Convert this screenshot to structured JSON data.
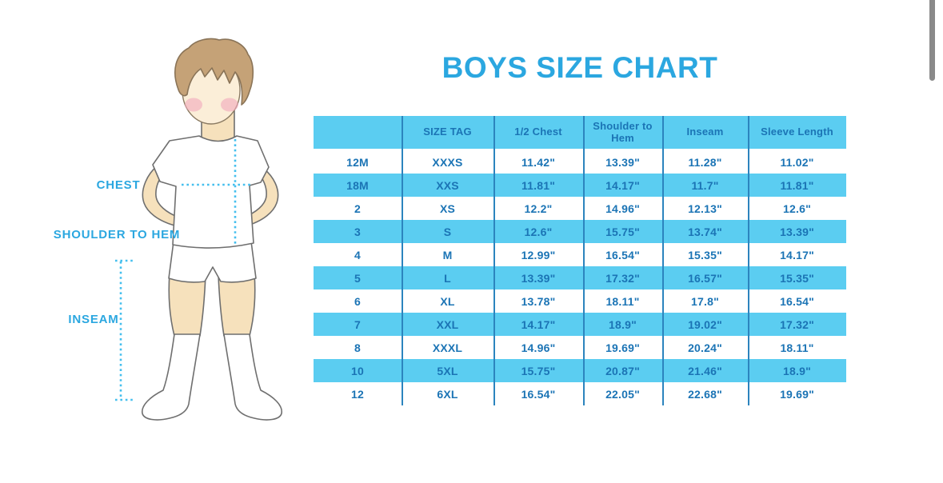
{
  "chart_data": {
    "type": "table",
    "title": "BOYS SIZE CHART",
    "columns": [
      "",
      "SIZE TAG",
      "1/2 Chest",
      "Shoulder to Hem",
      "Inseam",
      "Sleeve Length"
    ],
    "rows": [
      [
        "12M",
        "XXXS",
        "11.42\"",
        "13.39\"",
        "11.28\"",
        "11.02\""
      ],
      [
        "18M",
        "XXS",
        "11.81\"",
        "14.17\"",
        "11.7\"",
        "11.81\""
      ],
      [
        "2",
        "XS",
        "12.2\"",
        "14.96\"",
        "12.13\"",
        "12.6\""
      ],
      [
        "3",
        "S",
        "12.6\"",
        "15.75\"",
        "13.74\"",
        "13.39\""
      ],
      [
        "4",
        "M",
        "12.99\"",
        "16.54\"",
        "15.35\"",
        "14.17\""
      ],
      [
        "5",
        "L",
        "13.39\"",
        "17.32\"",
        "16.57\"",
        "15.35\""
      ],
      [
        "6",
        "XL",
        "13.78\"",
        "18.11\"",
        "17.8\"",
        "16.54\""
      ],
      [
        "7",
        "XXL",
        "14.17\"",
        "18.9\"",
        "19.02\"",
        "17.32\""
      ],
      [
        "8",
        "XXXL",
        "14.96\"",
        "19.69\"",
        "20.24\"",
        "18.11\""
      ],
      [
        "10",
        "5XL",
        "15.75\"",
        "20.87\"",
        "21.46\"",
        "18.9\""
      ],
      [
        "12",
        "6XL",
        "16.54\"",
        "22.05\"",
        "22.68\"",
        "19.69\""
      ]
    ],
    "units": "inches",
    "striping": "alternating white and cyan rows, cyan header"
  },
  "diagram": {
    "chest_label": "CHEST",
    "shoulder_to_hem_label": "SHOULDER TO HEM",
    "inseam_label": "INSEAM"
  },
  "colors": {
    "title_blue": "#2BA7E0",
    "table_text_blue": "#1B74B5",
    "row_cyan": "#5BCDF1",
    "column_divider_blue": "#2C84BE",
    "dotted_measure_line": "#45BFEE",
    "scrollbar_gray": "#8A8A8A"
  }
}
